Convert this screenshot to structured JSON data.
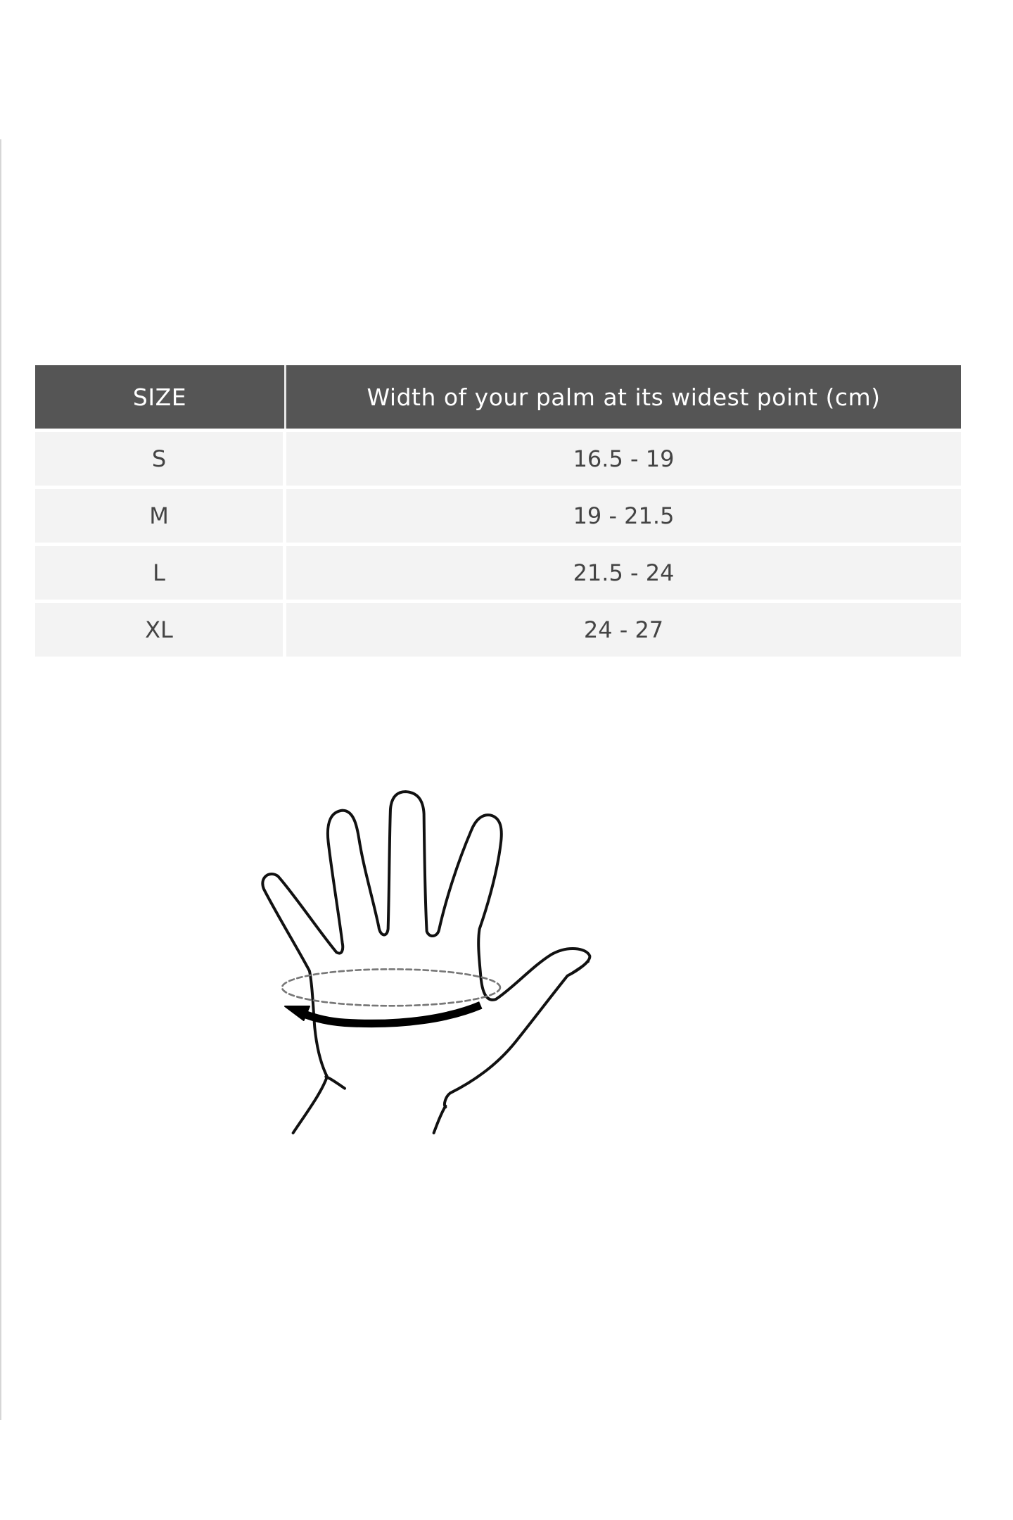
{
  "table": {
    "headers": [
      "SIZE",
      "Width of your palm at its widest point (cm)"
    ],
    "rows": [
      {
        "size": "S",
        "range": "16.5 - 19"
      },
      {
        "size": "M",
        "range": "19 - 21.5"
      },
      {
        "size": "L",
        "range": "21.5 - 24"
      },
      {
        "size": "XL",
        "range": "24 - 27"
      }
    ]
  },
  "colors": {
    "header_bg": "#555555",
    "row_bg": "#f3f3f3"
  },
  "illustration": "hand-palm-measurement-icon"
}
